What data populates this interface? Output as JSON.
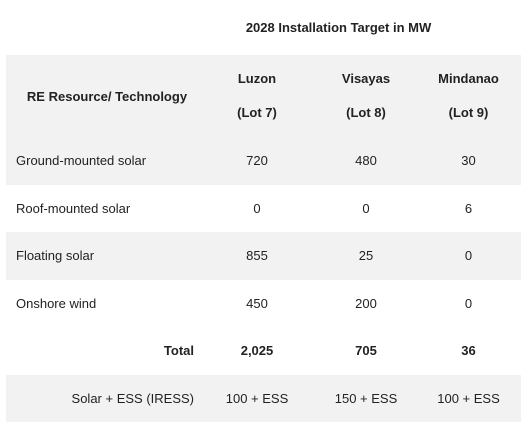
{
  "table": {
    "title": "2028 Installation Target in MW",
    "tech_header": "RE Resource/ Technology",
    "columns": [
      {
        "name": "Luzon",
        "lot": "(Lot 7)"
      },
      {
        "name": "Visayas",
        "lot": "(Lot 8)"
      },
      {
        "name": "Mindanao",
        "lot": "(Lot 9)"
      }
    ],
    "rows": [
      {
        "label": "Ground-mounted solar",
        "values": [
          "720",
          "480",
          "30"
        ]
      },
      {
        "label": "Roof-mounted solar",
        "values": [
          "0",
          "0",
          "6"
        ]
      },
      {
        "label": "Floating solar",
        "values": [
          "855",
          "25",
          "0"
        ]
      },
      {
        "label": "Onshore wind",
        "values": [
          "450",
          "200",
          "0"
        ]
      }
    ],
    "total": {
      "label": "Total",
      "values": [
        "2,025",
        "705",
        "36"
      ]
    },
    "iress": {
      "label": "Solar + ESS (IRESS)",
      "values": [
        "100 + ESS",
        "150 + ESS",
        "100 + ESS"
      ]
    }
  }
}
